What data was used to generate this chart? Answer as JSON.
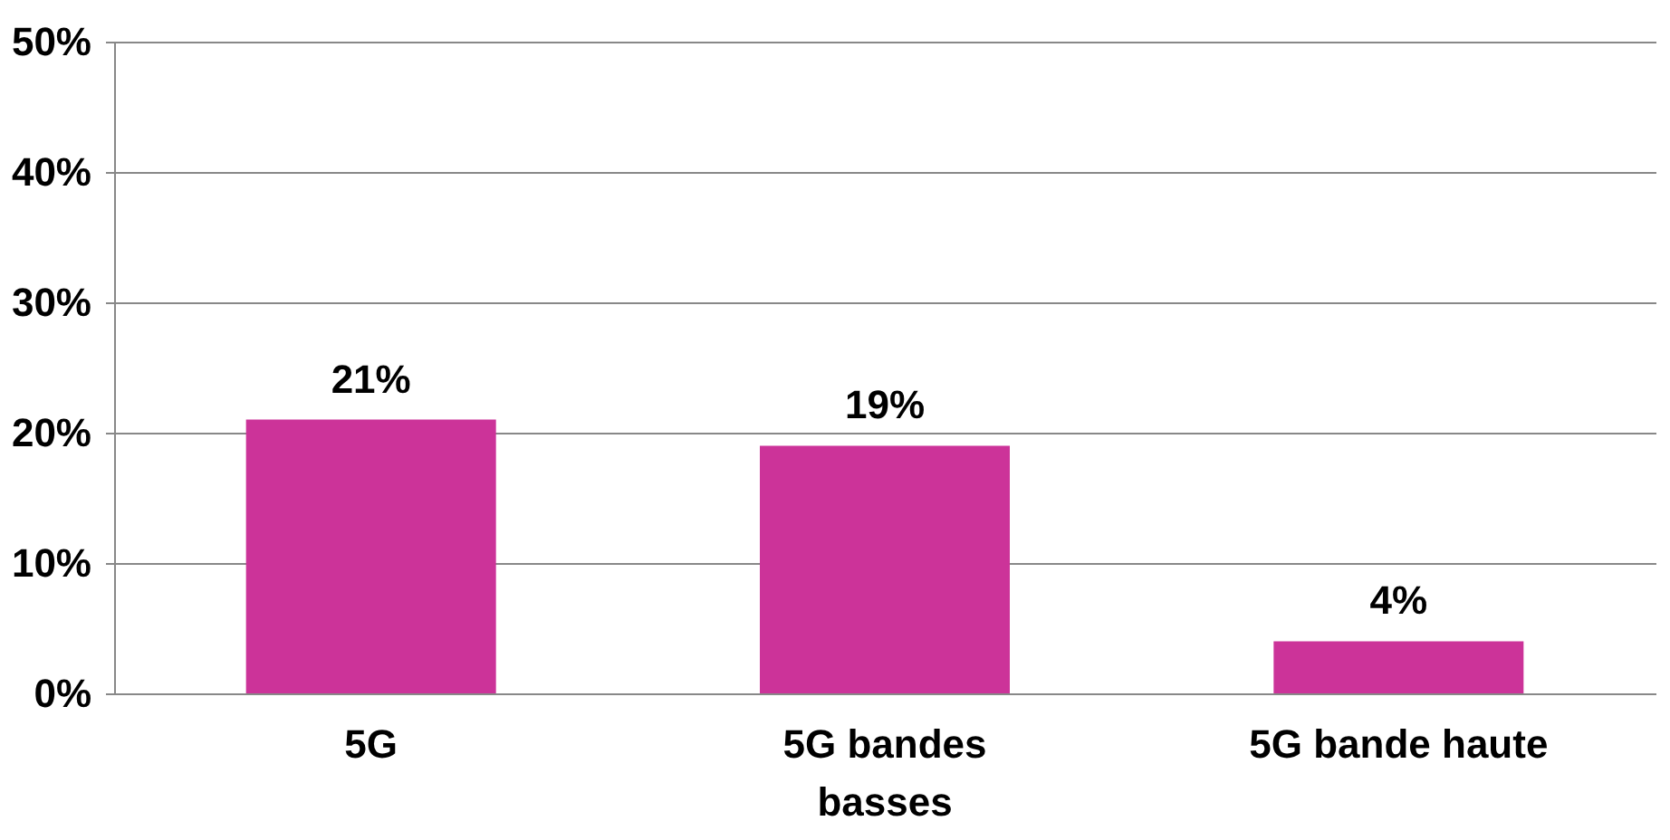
{
  "chart_data": {
    "type": "bar",
    "categories": [
      "5G",
      "5G bandes basses",
      "5G bande haute"
    ],
    "values": [
      21,
      19,
      4
    ],
    "color": "#cc3399",
    "value_labels": [
      "21%",
      "19%",
      "4%"
    ],
    "ylim": [
      0,
      50
    ],
    "yticks": [
      {
        "value": 0,
        "label": "0%"
      },
      {
        "value": 10,
        "label": "10%"
      },
      {
        "value": 20,
        "label": "20%"
      },
      {
        "value": 30,
        "label": "30%"
      },
      {
        "value": 40,
        "label": "40%"
      },
      {
        "value": 50,
        "label": "50%"
      }
    ],
    "grid": "y"
  }
}
